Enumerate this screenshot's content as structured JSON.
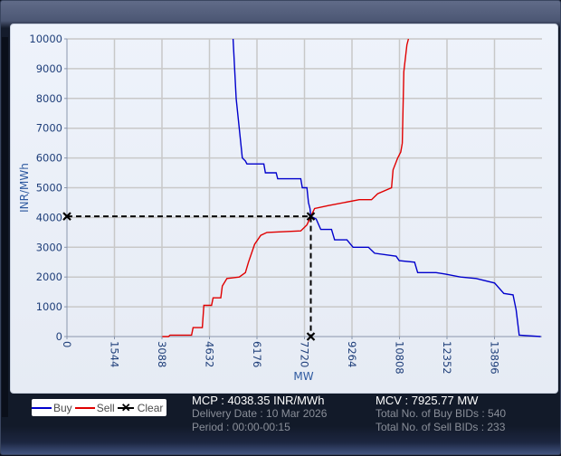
{
  "chart_data": {
    "type": "line",
    "title": "",
    "xlabel": "MW",
    "ylabel": "INR/MWh",
    "xlim": [
      0,
      15440
    ],
    "ylim": [
      0,
      10000
    ],
    "x_ticks": [
      "0",
      "1544",
      "3088",
      "4632",
      "6176",
      "7720",
      "9264",
      "10808",
      "12352",
      "13896"
    ],
    "y_ticks": [
      "0",
      "1000",
      "2000",
      "3000",
      "4000",
      "5000",
      "6000",
      "7000",
      "8000",
      "9000",
      "10000"
    ],
    "grid": true,
    "legend_position": "bottom-left",
    "series": [
      {
        "name": "Buy",
        "color": "#0000cc",
        "points": [
          [
            5400,
            10000
          ],
          [
            5500,
            8000
          ],
          [
            5600,
            7000
          ],
          [
            5700,
            6000
          ],
          [
            5800,
            5900
          ],
          [
            5850,
            5800
          ],
          [
            6400,
            5800
          ],
          [
            6450,
            5500
          ],
          [
            6800,
            5500
          ],
          [
            6850,
            5300
          ],
          [
            7600,
            5300
          ],
          [
            7650,
            5000
          ],
          [
            7800,
            5000
          ],
          [
            7850,
            4500
          ],
          [
            7900,
            4300
          ],
          [
            7926,
            4038
          ],
          [
            8100,
            3950
          ],
          [
            8250,
            3600
          ],
          [
            8600,
            3600
          ],
          [
            8700,
            3250
          ],
          [
            9100,
            3250
          ],
          [
            9300,
            3000
          ],
          [
            9800,
            3000
          ],
          [
            10000,
            2800
          ],
          [
            10700,
            2700
          ],
          [
            10800,
            2550
          ],
          [
            11300,
            2500
          ],
          [
            11400,
            2150
          ],
          [
            12000,
            2150
          ],
          [
            12300,
            2100
          ],
          [
            12800,
            2000
          ],
          [
            13300,
            1950
          ],
          [
            13900,
            1800
          ],
          [
            14200,
            1450
          ],
          [
            14500,
            1400
          ],
          [
            14600,
            900
          ],
          [
            14700,
            50
          ],
          [
            15400,
            0
          ]
        ],
        "values_note": "stepwise demand curve"
      },
      {
        "name": "Sell",
        "color": "#e00000",
        "points": [
          [
            3100,
            0
          ],
          [
            3300,
            0
          ],
          [
            3350,
            50
          ],
          [
            4050,
            50
          ],
          [
            4100,
            300
          ],
          [
            4400,
            300
          ],
          [
            4450,
            1050
          ],
          [
            4700,
            1050
          ],
          [
            4750,
            1300
          ],
          [
            5000,
            1300
          ],
          [
            5050,
            1700
          ],
          [
            5200,
            1950
          ],
          [
            5600,
            2000
          ],
          [
            5800,
            2150
          ],
          [
            5900,
            2500
          ],
          [
            6100,
            3100
          ],
          [
            6300,
            3400
          ],
          [
            6500,
            3500
          ],
          [
            7600,
            3550
          ],
          [
            7800,
            3750
          ],
          [
            7926,
            4038
          ],
          [
            8050,
            4300
          ],
          [
            8500,
            4400
          ],
          [
            9500,
            4600
          ],
          [
            9900,
            4600
          ],
          [
            10100,
            4800
          ],
          [
            10550,
            5000
          ],
          [
            10600,
            5600
          ],
          [
            10750,
            6000
          ],
          [
            10850,
            6200
          ],
          [
            10900,
            6500
          ],
          [
            10950,
            8900
          ],
          [
            11050,
            9800
          ],
          [
            11100,
            10000
          ]
        ],
        "values_note": "stepwise supply curve"
      },
      {
        "name": "Clear",
        "color": "#000000",
        "style": "dashed",
        "points": [
          [
            0,
            4038.35
          ],
          [
            7925.77,
            4038.35
          ],
          [
            7925.77,
            0
          ]
        ]
      }
    ],
    "annotations": [
      {
        "type": "marker",
        "shape": "x",
        "x": 0,
        "y": 4038.35
      },
      {
        "type": "marker",
        "shape": "x",
        "x": 7925.77,
        "y": 4038.35
      },
      {
        "type": "marker",
        "shape": "x",
        "x": 7925.77,
        "y": 0
      }
    ]
  },
  "legend": {
    "buy": "Buy",
    "sell": "Sell",
    "clear": "Clear",
    "buy_color": "#0000cc",
    "sell_color": "#e00000",
    "clear_color": "#000000"
  },
  "stats": {
    "mcp": "MCP : 4038.35 INR/MWh",
    "delivery_date": "Delivery Date : 10 Mar 2026",
    "period": "Period :  00:00-00:15",
    "mcv": "MCV : 7925.77 MW",
    "buy_bids": "Total No. of Buy BIDs : 540",
    "sell_bids": "Total No. of Sell BIDs : 233"
  }
}
